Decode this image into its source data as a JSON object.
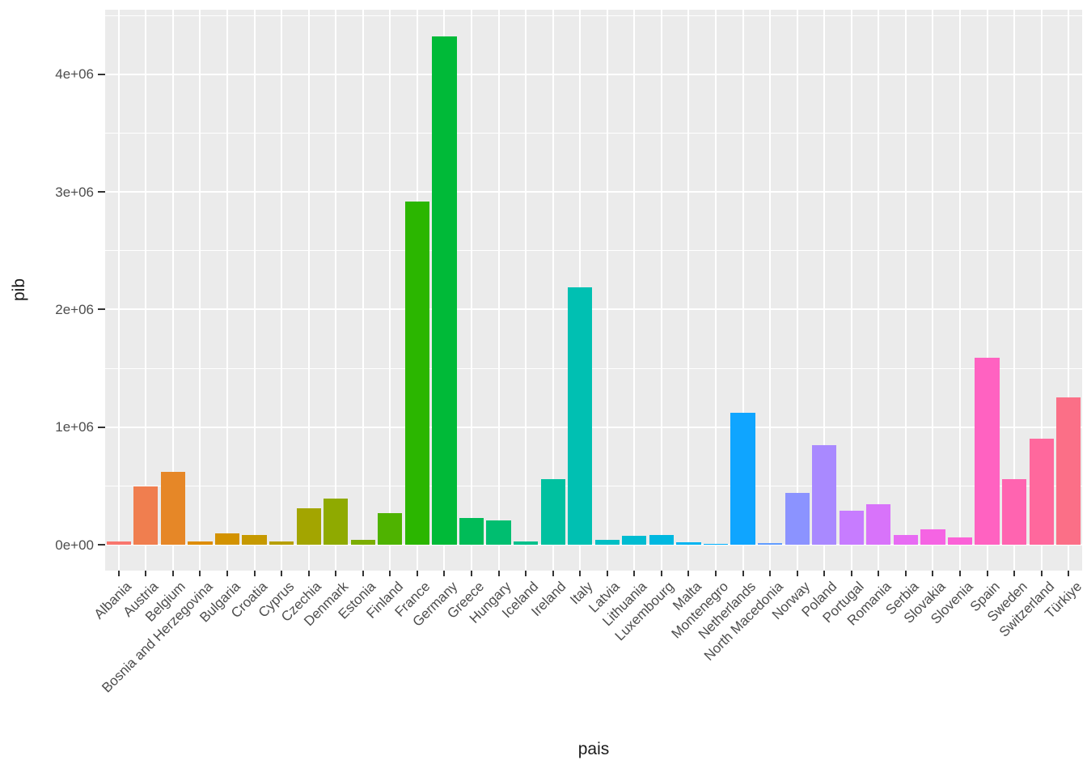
{
  "chart_data": {
    "type": "bar",
    "title": "",
    "xlabel": "pais",
    "ylabel": "pib",
    "legend": "none",
    "grid": "on",
    "categories": [
      "Albania",
      "Austria",
      "Belgium",
      "Bosnia and Herzegovina",
      "Bulgaria",
      "Croatia",
      "Cyprus",
      "Czechia",
      "Denmark",
      "Estonia",
      "Finland",
      "France",
      "Germany",
      "Greece",
      "Hungary",
      "Iceland",
      "Ireland",
      "Italy",
      "Latvia",
      "Lithuania",
      "Luxembourg",
      "Malta",
      "Montenegro",
      "Netherlands",
      "North Macedonia",
      "Norway",
      "Poland",
      "Portugal",
      "Romania",
      "Serbia",
      "Slovakia",
      "Slovenia",
      "Spain",
      "Sweden",
      "Switzerland",
      "Türkiye"
    ],
    "values": [
      28000,
      495000,
      620000,
      26000,
      100000,
      80000,
      31000,
      310000,
      390000,
      40000,
      272000,
      2920000,
      4320000,
      230000,
      205000,
      30000,
      560000,
      2190000,
      42000,
      75000,
      82000,
      22000,
      7000,
      1120000,
      14000,
      440000,
      845000,
      290000,
      345000,
      80000,
      130000,
      65000,
      1590000,
      555000,
      900000,
      1250000
    ],
    "bar_colors": [
      "#F8766D",
      "#F07E4F",
      "#E68727",
      "#DE8C00",
      "#D39200",
      "#C69900",
      "#B79F00",
      "#A3A500",
      "#8FAA00",
      "#7CAE00",
      "#4FB300",
      "#2BB600",
      "#00BA38",
      "#00BC58",
      "#00BE70",
      "#00C08B",
      "#00C1A0",
      "#00C0B2",
      "#00BFC4",
      "#00BCD1",
      "#00B8E0",
      "#00B4F0",
      "#00AEFA",
      "#0FA5FF",
      "#619CFF",
      "#8B93FF",
      "#A989FF",
      "#C77CFF",
      "#D873FA",
      "#E76BF3",
      "#F564E3",
      "#FB61D7",
      "#FF62C1",
      "#FF64B0",
      "#FF689D",
      "#FB6F87"
    ],
    "yaxis": {
      "tick_labels": [
        "0e+00",
        "1e+06",
        "2e+06",
        "3e+06",
        "4e+06"
      ],
      "tick_values": [
        0,
        1000000,
        2000000,
        3000000,
        4000000
      ],
      "minor_tick_values": [
        500000,
        1500000,
        2500000,
        3500000,
        4500000
      ],
      "ylim": [
        -220000,
        4550000
      ]
    }
  },
  "colors": {
    "background": "#FFFFFF",
    "panel_bg": "#EBEBEB",
    "gridline": "#FFFFFF",
    "tick_mark": "#333333",
    "tick_label": "#4D4D4D",
    "axis_title": "#1A1A1A"
  }
}
